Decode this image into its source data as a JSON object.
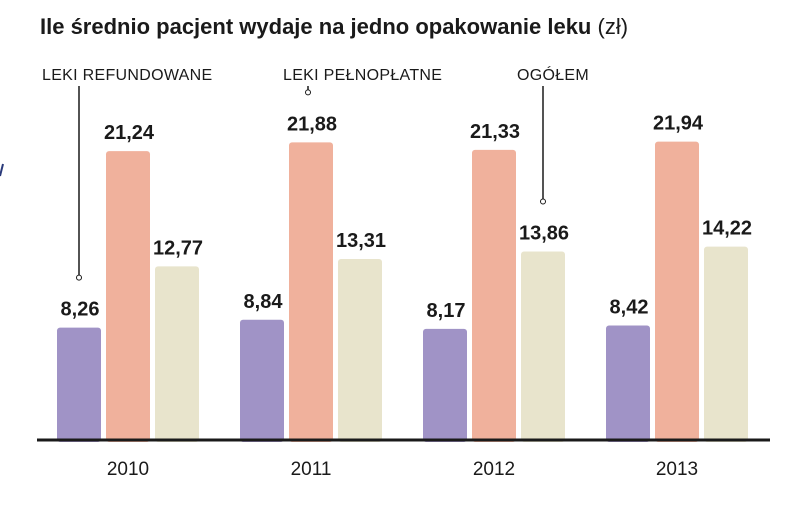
{
  "chart_data": {
    "type": "bar",
    "title": "Ile średnio pacjent wydaje na jedno opakowanie leku",
    "unit": "(zł)",
    "categories": [
      "2010",
      "2011",
      "2012",
      "2013"
    ],
    "series": [
      {
        "name": "LEKI REFUNDOWANE",
        "values": [
          8.26,
          8.84,
          8.17,
          8.42
        ],
        "labels": [
          "8,26",
          "8,84",
          "8,17",
          "8,42"
        ],
        "color": "#a093c6"
      },
      {
        "name": "LEKI PEŁNOPŁATNE",
        "values": [
          21.24,
          21.88,
          21.33,
          21.94
        ],
        "labels": [
          "21,24",
          "21,88",
          "21,33",
          "21,94"
        ],
        "color": "#f0b19c"
      },
      {
        "name": "OGÓŁEM",
        "values": [
          12.77,
          13.31,
          13.86,
          14.22
        ],
        "labels": [
          "12,77",
          "13,31",
          "13,86",
          "14,22"
        ],
        "color": "#e8e4cc"
      }
    ],
    "ylim": [
      0,
      25
    ],
    "grid": false,
    "xlabel": "",
    "ylabel": ""
  }
}
